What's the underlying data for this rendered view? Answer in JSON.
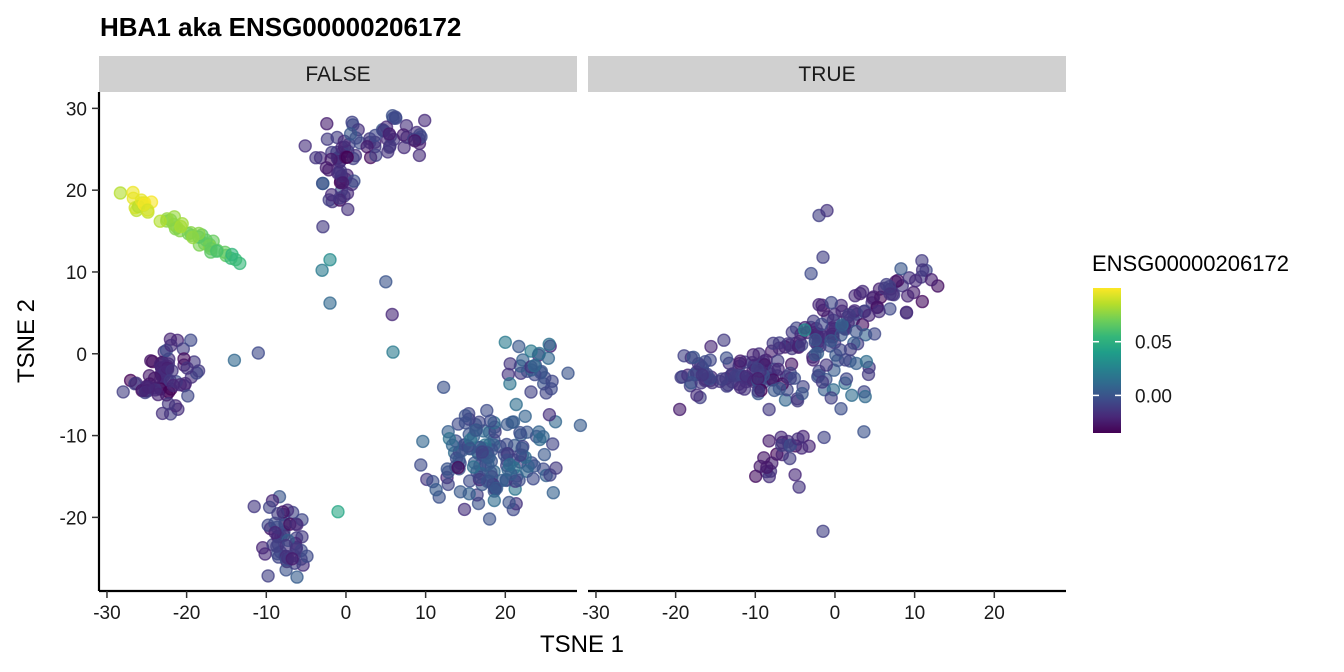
{
  "chart_data": {
    "type": "scatter",
    "title": "HBA1  aka ENSG00000206172",
    "xlabel": "TSNE 1",
    "ylabel": "TSNE 2",
    "xlim": [
      -31,
      29
    ],
    "ylim": [
      -29,
      32
    ],
    "x_ticks": [
      -30,
      -20,
      -10,
      0,
      10,
      20
    ],
    "y_ticks": [
      -20,
      -10,
      0,
      10,
      20,
      30
    ],
    "grid": false,
    "colorbar": {
      "title": "ENSG00000206172",
      "min": -0.035,
      "max": 0.1,
      "ticks": [
        0.0,
        0.05
      ],
      "tick_labels": [
        "0.00",
        "0.05"
      ],
      "palette": [
        "#440154",
        "#482878",
        "#3e4a89",
        "#31688e",
        "#26828e",
        "#1f9e89",
        "#35b779",
        "#6ece58",
        "#b5de2b",
        "#fde725"
      ]
    },
    "legend_position": "right",
    "panels": [
      {
        "label": "FALSE",
        "clusters": [
          {
            "shape": "line",
            "from": [
              -27.5,
              19.5
            ],
            "to": [
              -13,
              11
            ],
            "n": 48,
            "spread": 0.8,
            "value_from": 0.098,
            "value_to": 0.055
          },
          {
            "shape": "blob",
            "center": [
              -1,
              22
            ],
            "sd": [
              1.6,
              3.0
            ],
            "n": 45,
            "value": -0.015
          },
          {
            "shape": "blob",
            "center": [
              5,
              26.5
            ],
            "sd": [
              3.0,
              1.6
            ],
            "n": 45,
            "value": -0.012
          },
          {
            "shape": "blob",
            "center": [
              -22.5,
              -3
            ],
            "sd": [
              2.2,
              2.0
            ],
            "n": 70,
            "value": -0.02
          },
          {
            "shape": "blob",
            "center": [
              -7.5,
              -22.5
            ],
            "sd": [
              1.4,
              2.6
            ],
            "n": 55,
            "value": -0.015
          },
          {
            "shape": "blob",
            "center": [
              18,
              -12.5
            ],
            "sd": [
              3.8,
              2.8
            ],
            "n": 150,
            "value": 0.0
          },
          {
            "shape": "blob",
            "center": [
              23.5,
              -2
            ],
            "sd": [
              1.5,
              2.0
            ],
            "n": 28,
            "value": 0.0
          }
        ],
        "points": [
          {
            "x": -3,
            "y": 10.2,
            "v": 0.02
          },
          {
            "x": -2,
            "y": 11.5,
            "v": 0.03
          },
          {
            "x": -2,
            "y": 6.2,
            "v": 0.01
          },
          {
            "x": 5,
            "y": 8.8,
            "v": 0.0
          },
          {
            "x": 5.8,
            "y": 4.8,
            "v": -0.02
          },
          {
            "x": 5.9,
            "y": 0.2,
            "v": 0.02
          },
          {
            "x": -11,
            "y": 0.1,
            "v": -0.005
          },
          {
            "x": -14,
            "y": -0.8,
            "v": 0.01
          },
          {
            "x": -1,
            "y": -19.3,
            "v": 0.045
          },
          {
            "x": 20,
            "y": 1.4,
            "v": 0.02
          }
        ]
      },
      {
        "label": "TRUE",
        "clusters": [
          {
            "shape": "line",
            "from": [
              -18,
              -5
            ],
            "to": [
              12,
              9.5
            ],
            "n": 150,
            "spread": 2.4,
            "value_from": -0.015,
            "value_to": -0.02
          },
          {
            "shape": "blob",
            "center": [
              -16,
              -1
            ],
            "sd": [
              1.8,
              1.2
            ],
            "n": 18,
            "value": -0.01
          },
          {
            "shape": "blob",
            "center": [
              -9,
              -3.5
            ],
            "sd": [
              3.0,
              1.2
            ],
            "n": 30,
            "value": -0.01
          },
          {
            "shape": "blob",
            "center": [
              -5.5,
              -11.5
            ],
            "sd": [
              2.0,
              1.0
            ],
            "n": 16,
            "value": -0.015
          },
          {
            "shape": "blob",
            "center": [
              -8.5,
              -14.5
            ],
            "sd": [
              0.9,
              0.9
            ],
            "n": 8,
            "value": -0.025
          },
          {
            "shape": "blob",
            "center": [
              1,
              -1
            ],
            "sd": [
              2.4,
              3.5
            ],
            "n": 45,
            "value": 0.0
          }
        ],
        "points": [
          {
            "x": -2,
            "y": 16.9,
            "v": -0.01
          },
          {
            "x": -1,
            "y": 17.5,
            "v": -0.015
          },
          {
            "x": -1.5,
            "y": 11.8,
            "v": -0.01
          },
          {
            "x": -3,
            "y": 9.8,
            "v": -0.005
          },
          {
            "x": -2,
            "y": 6.0,
            "v": -0.02
          },
          {
            "x": -3.8,
            "y": 2.9,
            "v": 0.03
          },
          {
            "x": -5,
            "y": -14.8,
            "v": -0.02
          },
          {
            "x": -4.5,
            "y": -16.3,
            "v": -0.015
          },
          {
            "x": -1.5,
            "y": -21.7,
            "v": -0.01
          }
        ]
      }
    ]
  }
}
